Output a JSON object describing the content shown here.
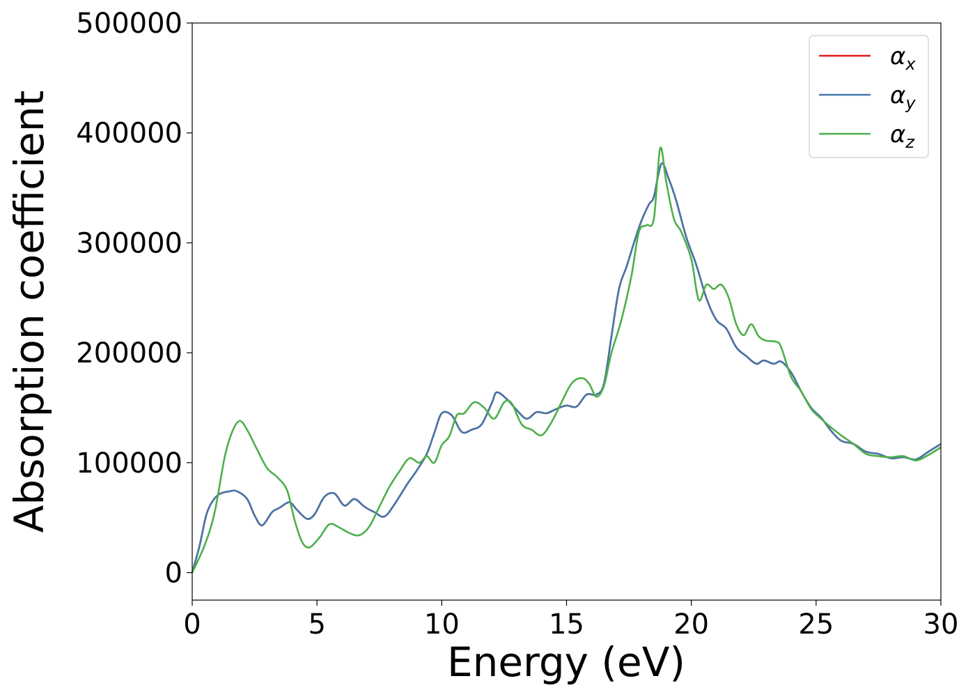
{
  "chart_data": {
    "type": "line",
    "xlabel": "Energy (eV)",
    "ylabel": "Absorption coefficient",
    "xlim": [
      0,
      30
    ],
    "ylim": [
      -25000,
      500000
    ],
    "xticks": [
      "0",
      "5",
      "10",
      "15",
      "20",
      "25",
      "30"
    ],
    "yticks": [
      "0",
      "100000",
      "200000",
      "300000",
      "400000",
      "500000"
    ],
    "grid": false,
    "legend_position": "upper right",
    "series": [
      {
        "name": "α_x",
        "legend_base": "α",
        "legend_sub": "x",
        "color": "#e41a1c",
        "points": [
          [
            0,
            0
          ],
          [
            0.3,
            25000
          ],
          [
            0.6,
            55000
          ],
          [
            1,
            70000
          ],
          [
            1.5,
            74000
          ],
          [
            1.8,
            74000
          ],
          [
            2.2,
            67000
          ],
          [
            2.5,
            52000
          ],
          [
            2.8,
            43000
          ],
          [
            3.2,
            55000
          ],
          [
            3.5,
            59000
          ],
          [
            3.9,
            64000
          ],
          [
            4.2,
            57000
          ],
          [
            4.6,
            49000
          ],
          [
            4.9,
            53000
          ],
          [
            5.3,
            69000
          ],
          [
            5.7,
            72000
          ],
          [
            6.1,
            61000
          ],
          [
            6.5,
            67000
          ],
          [
            6.9,
            60000
          ],
          [
            7.3,
            55000
          ],
          [
            7.7,
            51000
          ],
          [
            8.1,
            62000
          ],
          [
            8.6,
            80000
          ],
          [
            9,
            93000
          ],
          [
            9.4,
            108000
          ],
          [
            9.7,
            127000
          ],
          [
            10,
            145000
          ],
          [
            10.4,
            143000
          ],
          [
            10.8,
            128000
          ],
          [
            11.2,
            130000
          ],
          [
            11.6,
            135000
          ],
          [
            12,
            154000
          ],
          [
            12.2,
            164000
          ],
          [
            12.6,
            158000
          ],
          [
            13,
            148000
          ],
          [
            13.4,
            140000
          ],
          [
            13.8,
            146000
          ],
          [
            14.2,
            145000
          ],
          [
            14.6,
            149000
          ],
          [
            15,
            152000
          ],
          [
            15.4,
            151000
          ],
          [
            15.8,
            162000
          ],
          [
            16.2,
            162000
          ],
          [
            16.5,
            172000
          ],
          [
            16.8,
            215000
          ],
          [
            17.1,
            258000
          ],
          [
            17.4,
            278000
          ],
          [
            17.7,
            300000
          ],
          [
            18,
            320000
          ],
          [
            18.3,
            335000
          ],
          [
            18.5,
            342000
          ],
          [
            18.8,
            372000
          ],
          [
            19.1,
            358000
          ],
          [
            19.4,
            338000
          ],
          [
            19.8,
            305000
          ],
          [
            20.2,
            280000
          ],
          [
            20.6,
            250000
          ],
          [
            21,
            230000
          ],
          [
            21.4,
            222000
          ],
          [
            21.8,
            205000
          ],
          [
            22.2,
            197000
          ],
          [
            22.6,
            190000
          ],
          [
            22.9,
            193000
          ],
          [
            23.3,
            190000
          ],
          [
            23.6,
            192000
          ],
          [
            24,
            182000
          ],
          [
            24.4,
            165000
          ],
          [
            24.8,
            150000
          ],
          [
            25.2,
            141000
          ],
          [
            25.6,
            129000
          ],
          [
            26,
            120000
          ],
          [
            26.5,
            117000
          ],
          [
            27,
            110000
          ],
          [
            27.5,
            108000
          ],
          [
            28,
            104000
          ],
          [
            28.5,
            105000
          ],
          [
            29,
            103000
          ],
          [
            29.5,
            110000
          ],
          [
            30,
            117000
          ]
        ]
      },
      {
        "name": "α_y",
        "legend_base": "α",
        "legend_sub": "y",
        "color": "#4477aa",
        "points": [
          [
            0,
            0
          ],
          [
            0.3,
            25000
          ],
          [
            0.6,
            55000
          ],
          [
            1,
            70000
          ],
          [
            1.5,
            74000
          ],
          [
            1.8,
            74000
          ],
          [
            2.2,
            67000
          ],
          [
            2.5,
            52000
          ],
          [
            2.8,
            43000
          ],
          [
            3.2,
            55000
          ],
          [
            3.5,
            59000
          ],
          [
            3.9,
            64000
          ],
          [
            4.2,
            57000
          ],
          [
            4.6,
            49000
          ],
          [
            4.9,
            53000
          ],
          [
            5.3,
            69000
          ],
          [
            5.7,
            72000
          ],
          [
            6.1,
            61000
          ],
          [
            6.5,
            67000
          ],
          [
            6.9,
            60000
          ],
          [
            7.3,
            55000
          ],
          [
            7.7,
            51000
          ],
          [
            8.1,
            62000
          ],
          [
            8.6,
            80000
          ],
          [
            9,
            93000
          ],
          [
            9.4,
            108000
          ],
          [
            9.7,
            127000
          ],
          [
            10,
            145000
          ],
          [
            10.4,
            143000
          ],
          [
            10.8,
            128000
          ],
          [
            11.2,
            130000
          ],
          [
            11.6,
            135000
          ],
          [
            12,
            154000
          ],
          [
            12.2,
            164000
          ],
          [
            12.6,
            158000
          ],
          [
            13,
            148000
          ],
          [
            13.4,
            140000
          ],
          [
            13.8,
            146000
          ],
          [
            14.2,
            145000
          ],
          [
            14.6,
            149000
          ],
          [
            15,
            152000
          ],
          [
            15.4,
            151000
          ],
          [
            15.8,
            162000
          ],
          [
            16.2,
            162000
          ],
          [
            16.5,
            172000
          ],
          [
            16.8,
            215000
          ],
          [
            17.1,
            258000
          ],
          [
            17.4,
            278000
          ],
          [
            17.7,
            300000
          ],
          [
            18,
            320000
          ],
          [
            18.3,
            335000
          ],
          [
            18.5,
            342000
          ],
          [
            18.8,
            372000
          ],
          [
            19.1,
            358000
          ],
          [
            19.4,
            338000
          ],
          [
            19.8,
            305000
          ],
          [
            20.2,
            280000
          ],
          [
            20.6,
            250000
          ],
          [
            21,
            230000
          ],
          [
            21.4,
            222000
          ],
          [
            21.8,
            205000
          ],
          [
            22.2,
            197000
          ],
          [
            22.6,
            190000
          ],
          [
            22.9,
            193000
          ],
          [
            23.3,
            190000
          ],
          [
            23.6,
            192000
          ],
          [
            24,
            182000
          ],
          [
            24.4,
            165000
          ],
          [
            24.8,
            150000
          ],
          [
            25.2,
            141000
          ],
          [
            25.6,
            129000
          ],
          [
            26,
            120000
          ],
          [
            26.5,
            117000
          ],
          [
            27,
            110000
          ],
          [
            27.5,
            108000
          ],
          [
            28,
            104000
          ],
          [
            28.5,
            105000
          ],
          [
            29,
            103000
          ],
          [
            29.5,
            110000
          ],
          [
            30,
            117000
          ]
        ]
      },
      {
        "name": "α_z",
        "legend_base": "α",
        "legend_sub": "z",
        "color": "#4daf4a",
        "points": [
          [
            0,
            0
          ],
          [
            0.5,
            25000
          ],
          [
            0.9,
            55000
          ],
          [
            1.3,
            105000
          ],
          [
            1.6,
            128000
          ],
          [
            1.9,
            138000
          ],
          [
            2.2,
            130000
          ],
          [
            2.6,
            112000
          ],
          [
            3,
            95000
          ],
          [
            3.4,
            87000
          ],
          [
            3.8,
            75000
          ],
          [
            4.1,
            48000
          ],
          [
            4.4,
            28000
          ],
          [
            4.7,
            23000
          ],
          [
            5.1,
            32000
          ],
          [
            5.5,
            44000
          ],
          [
            5.9,
            41000
          ],
          [
            6.3,
            36000
          ],
          [
            6.7,
            34000
          ],
          [
            7.1,
            42000
          ],
          [
            7.5,
            60000
          ],
          [
            7.9,
            78000
          ],
          [
            8.3,
            92000
          ],
          [
            8.7,
            104000
          ],
          [
            9.1,
            100000
          ],
          [
            9.4,
            106000
          ],
          [
            9.7,
            100000
          ],
          [
            10,
            116000
          ],
          [
            10.3,
            124000
          ],
          [
            10.6,
            143000
          ],
          [
            10.9,
            145000
          ],
          [
            11.3,
            155000
          ],
          [
            11.7,
            150000
          ],
          [
            12.1,
            140000
          ],
          [
            12.5,
            155000
          ],
          [
            12.8,
            154000
          ],
          [
            13.2,
            135000
          ],
          [
            13.6,
            130000
          ],
          [
            14,
            125000
          ],
          [
            14.4,
            137000
          ],
          [
            14.8,
            155000
          ],
          [
            15.2,
            172000
          ],
          [
            15.6,
            177000
          ],
          [
            15.9,
            172000
          ],
          [
            16.2,
            160000
          ],
          [
            16.5,
            170000
          ],
          [
            16.8,
            200000
          ],
          [
            17.2,
            230000
          ],
          [
            17.6,
            270000
          ],
          [
            17.9,
            310000
          ],
          [
            18.2,
            316000
          ],
          [
            18.5,
            322000
          ],
          [
            18.75,
            386000
          ],
          [
            19,
            355000
          ],
          [
            19.3,
            322000
          ],
          [
            19.6,
            310000
          ],
          [
            20,
            285000
          ],
          [
            20.3,
            248000
          ],
          [
            20.6,
            262000
          ],
          [
            20.9,
            258000
          ],
          [
            21.2,
            262000
          ],
          [
            21.5,
            250000
          ],
          [
            21.8,
            226000
          ],
          [
            22.1,
            216000
          ],
          [
            22.4,
            226000
          ],
          [
            22.7,
            215000
          ],
          [
            23,
            211000
          ],
          [
            23.4,
            210000
          ],
          [
            23.6,
            205000
          ],
          [
            24,
            178000
          ],
          [
            24.4,
            165000
          ],
          [
            24.8,
            149000
          ],
          [
            25.2,
            140000
          ],
          [
            25.6,
            132000
          ],
          [
            26,
            125000
          ],
          [
            26.5,
            117000
          ],
          [
            27,
            108000
          ],
          [
            27.5,
            106000
          ],
          [
            28,
            105000
          ],
          [
            28.5,
            106000
          ],
          [
            29,
            102000
          ],
          [
            29.5,
            107000
          ],
          [
            30,
            114000
          ]
        ]
      }
    ]
  }
}
